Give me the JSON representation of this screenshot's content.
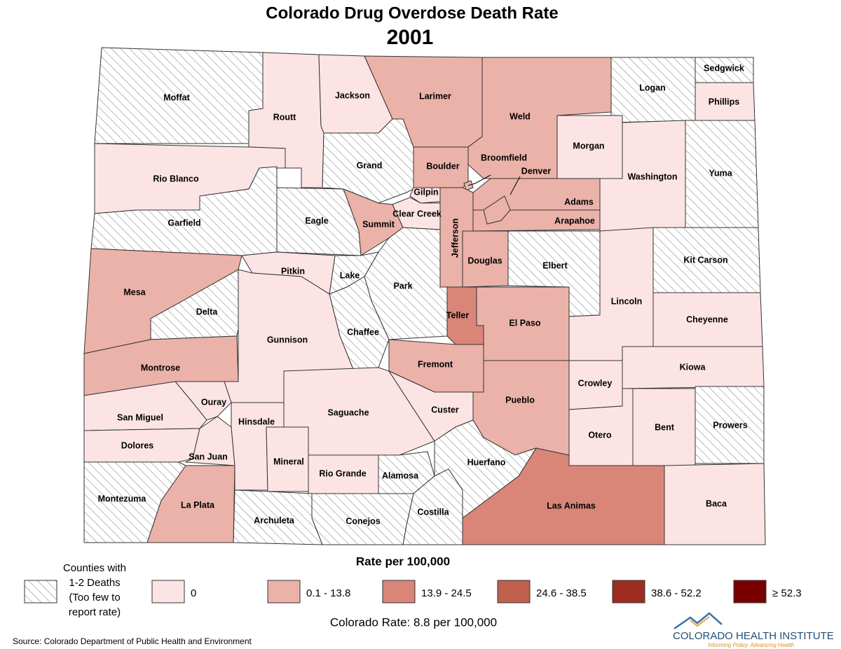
{
  "title": "Colorado Drug Overdose Death Rate",
  "subtitle": "2001",
  "counties": [
    {
      "name": "Moffat",
      "color": "hatch"
    },
    {
      "name": "Routt",
      "color": "#fde4e4"
    },
    {
      "name": "Jackson",
      "color": "#fde4e4"
    },
    {
      "name": "Larimer",
      "color": "#ebb2a9"
    },
    {
      "name": "Weld",
      "color": "#ebb2a9"
    },
    {
      "name": "Logan",
      "color": "hatch"
    },
    {
      "name": "Sedgwick",
      "color": "hatch"
    },
    {
      "name": "Phillips",
      "color": "#fde4e4"
    },
    {
      "name": "Morgan",
      "color": "#fde4e4"
    },
    {
      "name": "Washington",
      "color": "#fde4e4"
    },
    {
      "name": "Yuma",
      "color": "hatch"
    },
    {
      "name": "Rio Blanco",
      "color": "#fde4e4"
    },
    {
      "name": "Garfield",
      "color": "hatch"
    },
    {
      "name": "Grand",
      "color": "hatch"
    },
    {
      "name": "Boulder",
      "color": "#ebb2a9"
    },
    {
      "name": "Broomfield",
      "color": "#ebb2a9"
    },
    {
      "name": "Gilpin",
      "color": "#fde4e4"
    },
    {
      "name": "Clear Creek",
      "color": "#fde4e4"
    },
    {
      "name": "Summit",
      "color": "#ebb2a9"
    },
    {
      "name": "Eagle",
      "color": "hatch"
    },
    {
      "name": "Jefferson",
      "color": "#ebb2a9"
    },
    {
      "name": "Adams",
      "color": "#ebb2a9"
    },
    {
      "name": "Arapahoe",
      "color": "#ebb2a9"
    },
    {
      "name": "Denver",
      "color": "#ebb2a9"
    },
    {
      "name": "Douglas",
      "color": "#ebb2a9"
    },
    {
      "name": "Elbert",
      "color": "hatch"
    },
    {
      "name": "Kit Carson",
      "color": "hatch"
    },
    {
      "name": "Lincoln",
      "color": "#fde4e4"
    },
    {
      "name": "Cheyenne",
      "color": "#fde4e4"
    },
    {
      "name": "Kiowa",
      "color": "#fde4e4"
    },
    {
      "name": "Crowley",
      "color": "#fde4e4"
    },
    {
      "name": "Otero",
      "color": "#fde4e4"
    },
    {
      "name": "Bent",
      "color": "#fde4e4"
    },
    {
      "name": "Prowers",
      "color": "hatch"
    },
    {
      "name": "Baca",
      "color": "#fde4e4"
    },
    {
      "name": "Las Animas",
      "color": "#d98679"
    },
    {
      "name": "Pueblo",
      "color": "#ebb2a9"
    },
    {
      "name": "El Paso",
      "color": "#ebb2a9"
    },
    {
      "name": "Teller",
      "color": "#d98679"
    },
    {
      "name": "Fremont",
      "color": "#ebb2a9"
    },
    {
      "name": "Park",
      "color": "hatch"
    },
    {
      "name": "Lake",
      "color": "hatch"
    },
    {
      "name": "Chaffee",
      "color": "hatch"
    },
    {
      "name": "Pitkin",
      "color": "#fde4e4"
    },
    {
      "name": "Gunnison",
      "color": "#fde4e4"
    },
    {
      "name": "Delta",
      "color": "hatch"
    },
    {
      "name": "Mesa",
      "color": "#ebb2a9"
    },
    {
      "name": "Montrose",
      "color": "#ebb2a9"
    },
    {
      "name": "Ouray",
      "color": "#fde4e4"
    },
    {
      "name": "San Miguel",
      "color": "#fde4e4"
    },
    {
      "name": "Dolores",
      "color": "#fde4e4"
    },
    {
      "name": "San Juan",
      "color": "#fde4e4"
    },
    {
      "name": "Hinsdale",
      "color": "#fde4e4"
    },
    {
      "name": "Mineral",
      "color": "#fde4e4"
    },
    {
      "name": "Saguache",
      "color": "#fde4e4"
    },
    {
      "name": "Rio Grande",
      "color": "#fde4e4"
    },
    {
      "name": "Alamosa",
      "color": "hatch"
    },
    {
      "name": "Custer",
      "color": "#fde4e4"
    },
    {
      "name": "Huerfano",
      "color": "hatch"
    },
    {
      "name": "Costilla",
      "color": "hatch"
    },
    {
      "name": "Conejos",
      "color": "hatch"
    },
    {
      "name": "Archuleta",
      "color": "hatch"
    },
    {
      "name": "La Plata",
      "color": "#ebb2a9"
    },
    {
      "name": "Montezuma",
      "color": "hatch"
    }
  ],
  "legend": {
    "title": "Rate per 100,000",
    "items": [
      {
        "lines": [
          "Counties with",
          "1-2 Deaths",
          "(Too few to",
          "report rate)"
        ],
        "color": "hatch"
      },
      {
        "label": "0",
        "color": "#fde4e4"
      },
      {
        "label": "0.1 - 13.8",
        "color": "#ebb2a9"
      },
      {
        "label": "13.9 - 24.5",
        "color": "#d98679"
      },
      {
        "label": "24.6 - 38.5",
        "color": "#c0604d"
      },
      {
        "label": "38.6 - 52.2",
        "color": "#9c2d20"
      },
      {
        "label": "≥ 52.3",
        "color": "#7a0000"
      }
    ]
  },
  "state_rate": "Colorado Rate: 8.8 per 100,000",
  "source": "Source: Colorado Department of Public Health and Environment",
  "logo": {
    "name": "COLORADO HEALTH INSTITUTE",
    "tagline": "Informing Policy. Advancing Health"
  }
}
